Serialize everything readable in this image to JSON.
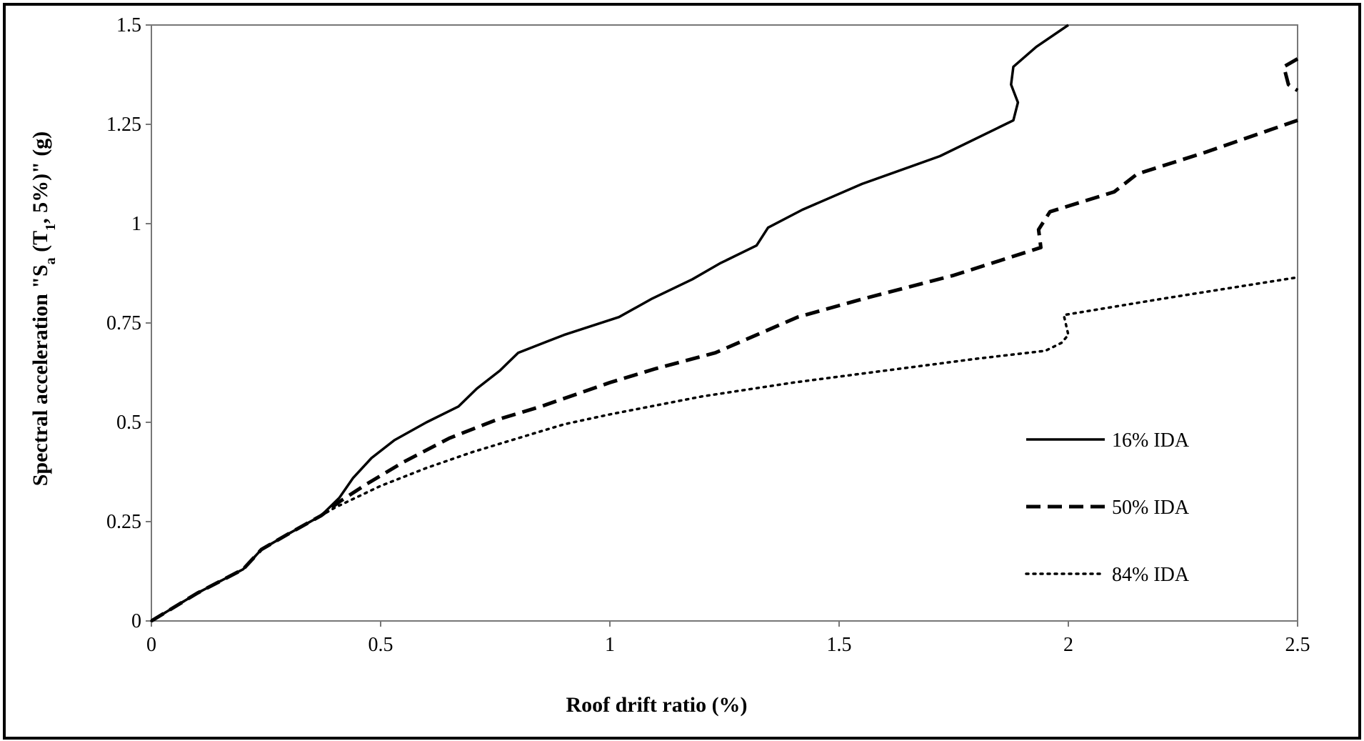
{
  "chart_data": {
    "type": "line",
    "title": "",
    "xlabel": "Roof drift ratio (%)",
    "ylabel_parts": {
      "prefix": "Spectral acceleration  \"S",
      "sub1": "a",
      "mid": " (T",
      "sub2": "1",
      "suffix": ", 5%)\" (g)"
    },
    "xlim": [
      0,
      2.5
    ],
    "ylim": [
      0,
      1.5
    ],
    "xticks": [
      "0",
      "0.5",
      "1",
      "1.5",
      "2",
      "2.5"
    ],
    "xtick_values": [
      0,
      0.5,
      1,
      1.5,
      2,
      2.5
    ],
    "yticks": [
      "0",
      "0.25",
      "0.5",
      "0.75",
      "1",
      "1.25",
      "1.5"
    ],
    "ytick_values": [
      0,
      0.25,
      0.5,
      0.75,
      1,
      1.25,
      1.5
    ],
    "grid": false,
    "legend_position": "right",
    "series": [
      {
        "name": "16% IDA",
        "style": "solid",
        "points": [
          [
            0,
            0
          ],
          [
            0.1,
            0.07
          ],
          [
            0.2,
            0.13
          ],
          [
            0.24,
            0.18
          ],
          [
            0.3,
            0.22
          ],
          [
            0.37,
            0.265
          ],
          [
            0.41,
            0.31
          ],
          [
            0.44,
            0.36
          ],
          [
            0.48,
            0.41
          ],
          [
            0.53,
            0.455
          ],
          [
            0.6,
            0.5
          ],
          [
            0.67,
            0.54
          ],
          [
            0.71,
            0.585
          ],
          [
            0.76,
            0.63
          ],
          [
            0.8,
            0.675
          ],
          [
            0.9,
            0.72
          ],
          [
            1.02,
            0.765
          ],
          [
            1.09,
            0.81
          ],
          [
            1.18,
            0.86
          ],
          [
            1.24,
            0.9
          ],
          [
            1.32,
            0.945
          ],
          [
            1.345,
            0.99
          ],
          [
            1.42,
            1.035
          ],
          [
            1.55,
            1.1
          ],
          [
            1.72,
            1.17
          ],
          [
            1.88,
            1.26
          ],
          [
            1.89,
            1.305
          ],
          [
            1.875,
            1.35
          ],
          [
            1.88,
            1.395
          ],
          [
            1.93,
            1.445
          ],
          [
            2.0,
            1.5
          ]
        ]
      },
      {
        "name": "50% IDA",
        "style": "dashed",
        "points": [
          [
            0,
            0
          ],
          [
            0.1,
            0.07
          ],
          [
            0.2,
            0.13
          ],
          [
            0.24,
            0.18
          ],
          [
            0.3,
            0.22
          ],
          [
            0.37,
            0.265
          ],
          [
            0.41,
            0.3
          ],
          [
            0.47,
            0.345
          ],
          [
            0.55,
            0.4
          ],
          [
            0.65,
            0.46
          ],
          [
            0.75,
            0.505
          ],
          [
            0.85,
            0.54
          ],
          [
            1.0,
            0.6
          ],
          [
            1.1,
            0.635
          ],
          [
            1.23,
            0.675
          ],
          [
            1.32,
            0.72
          ],
          [
            1.41,
            0.765
          ],
          [
            1.55,
            0.81
          ],
          [
            1.75,
            0.87
          ],
          [
            1.94,
            0.94
          ],
          [
            1.935,
            0.985
          ],
          [
            1.96,
            1.03
          ],
          [
            2.1,
            1.08
          ],
          [
            2.15,
            1.125
          ],
          [
            2.3,
            1.18
          ],
          [
            2.5,
            1.26
          ]
        ]
      },
      {
        "name": "50% IDA upper",
        "style": "dashed",
        "points": [
          [
            2.5,
            1.415
          ],
          [
            2.47,
            1.395
          ],
          [
            2.48,
            1.35
          ],
          [
            2.5,
            1.335
          ]
        ]
      },
      {
        "name": "84% IDA",
        "style": "dotted",
        "points": [
          [
            0,
            0
          ],
          [
            0.1,
            0.07
          ],
          [
            0.2,
            0.13
          ],
          [
            0.24,
            0.18
          ],
          [
            0.3,
            0.22
          ],
          [
            0.37,
            0.265
          ],
          [
            0.4,
            0.285
          ],
          [
            0.5,
            0.34
          ],
          [
            0.6,
            0.385
          ],
          [
            0.7,
            0.425
          ],
          [
            0.8,
            0.46
          ],
          [
            0.9,
            0.495
          ],
          [
            1.0,
            0.52
          ],
          [
            1.2,
            0.565
          ],
          [
            1.4,
            0.6
          ],
          [
            1.6,
            0.63
          ],
          [
            1.8,
            0.66
          ],
          [
            1.95,
            0.68
          ],
          [
            1.985,
            0.7
          ],
          [
            2.0,
            0.72
          ],
          [
            1.99,
            0.77
          ],
          [
            2.2,
            0.81
          ],
          [
            2.5,
            0.865
          ]
        ]
      }
    ],
    "legend": [
      {
        "label": "16% IDA",
        "style": "solid"
      },
      {
        "label": "50% IDA",
        "style": "dashed"
      },
      {
        "label": "84% IDA",
        "style": "dotted"
      }
    ]
  }
}
